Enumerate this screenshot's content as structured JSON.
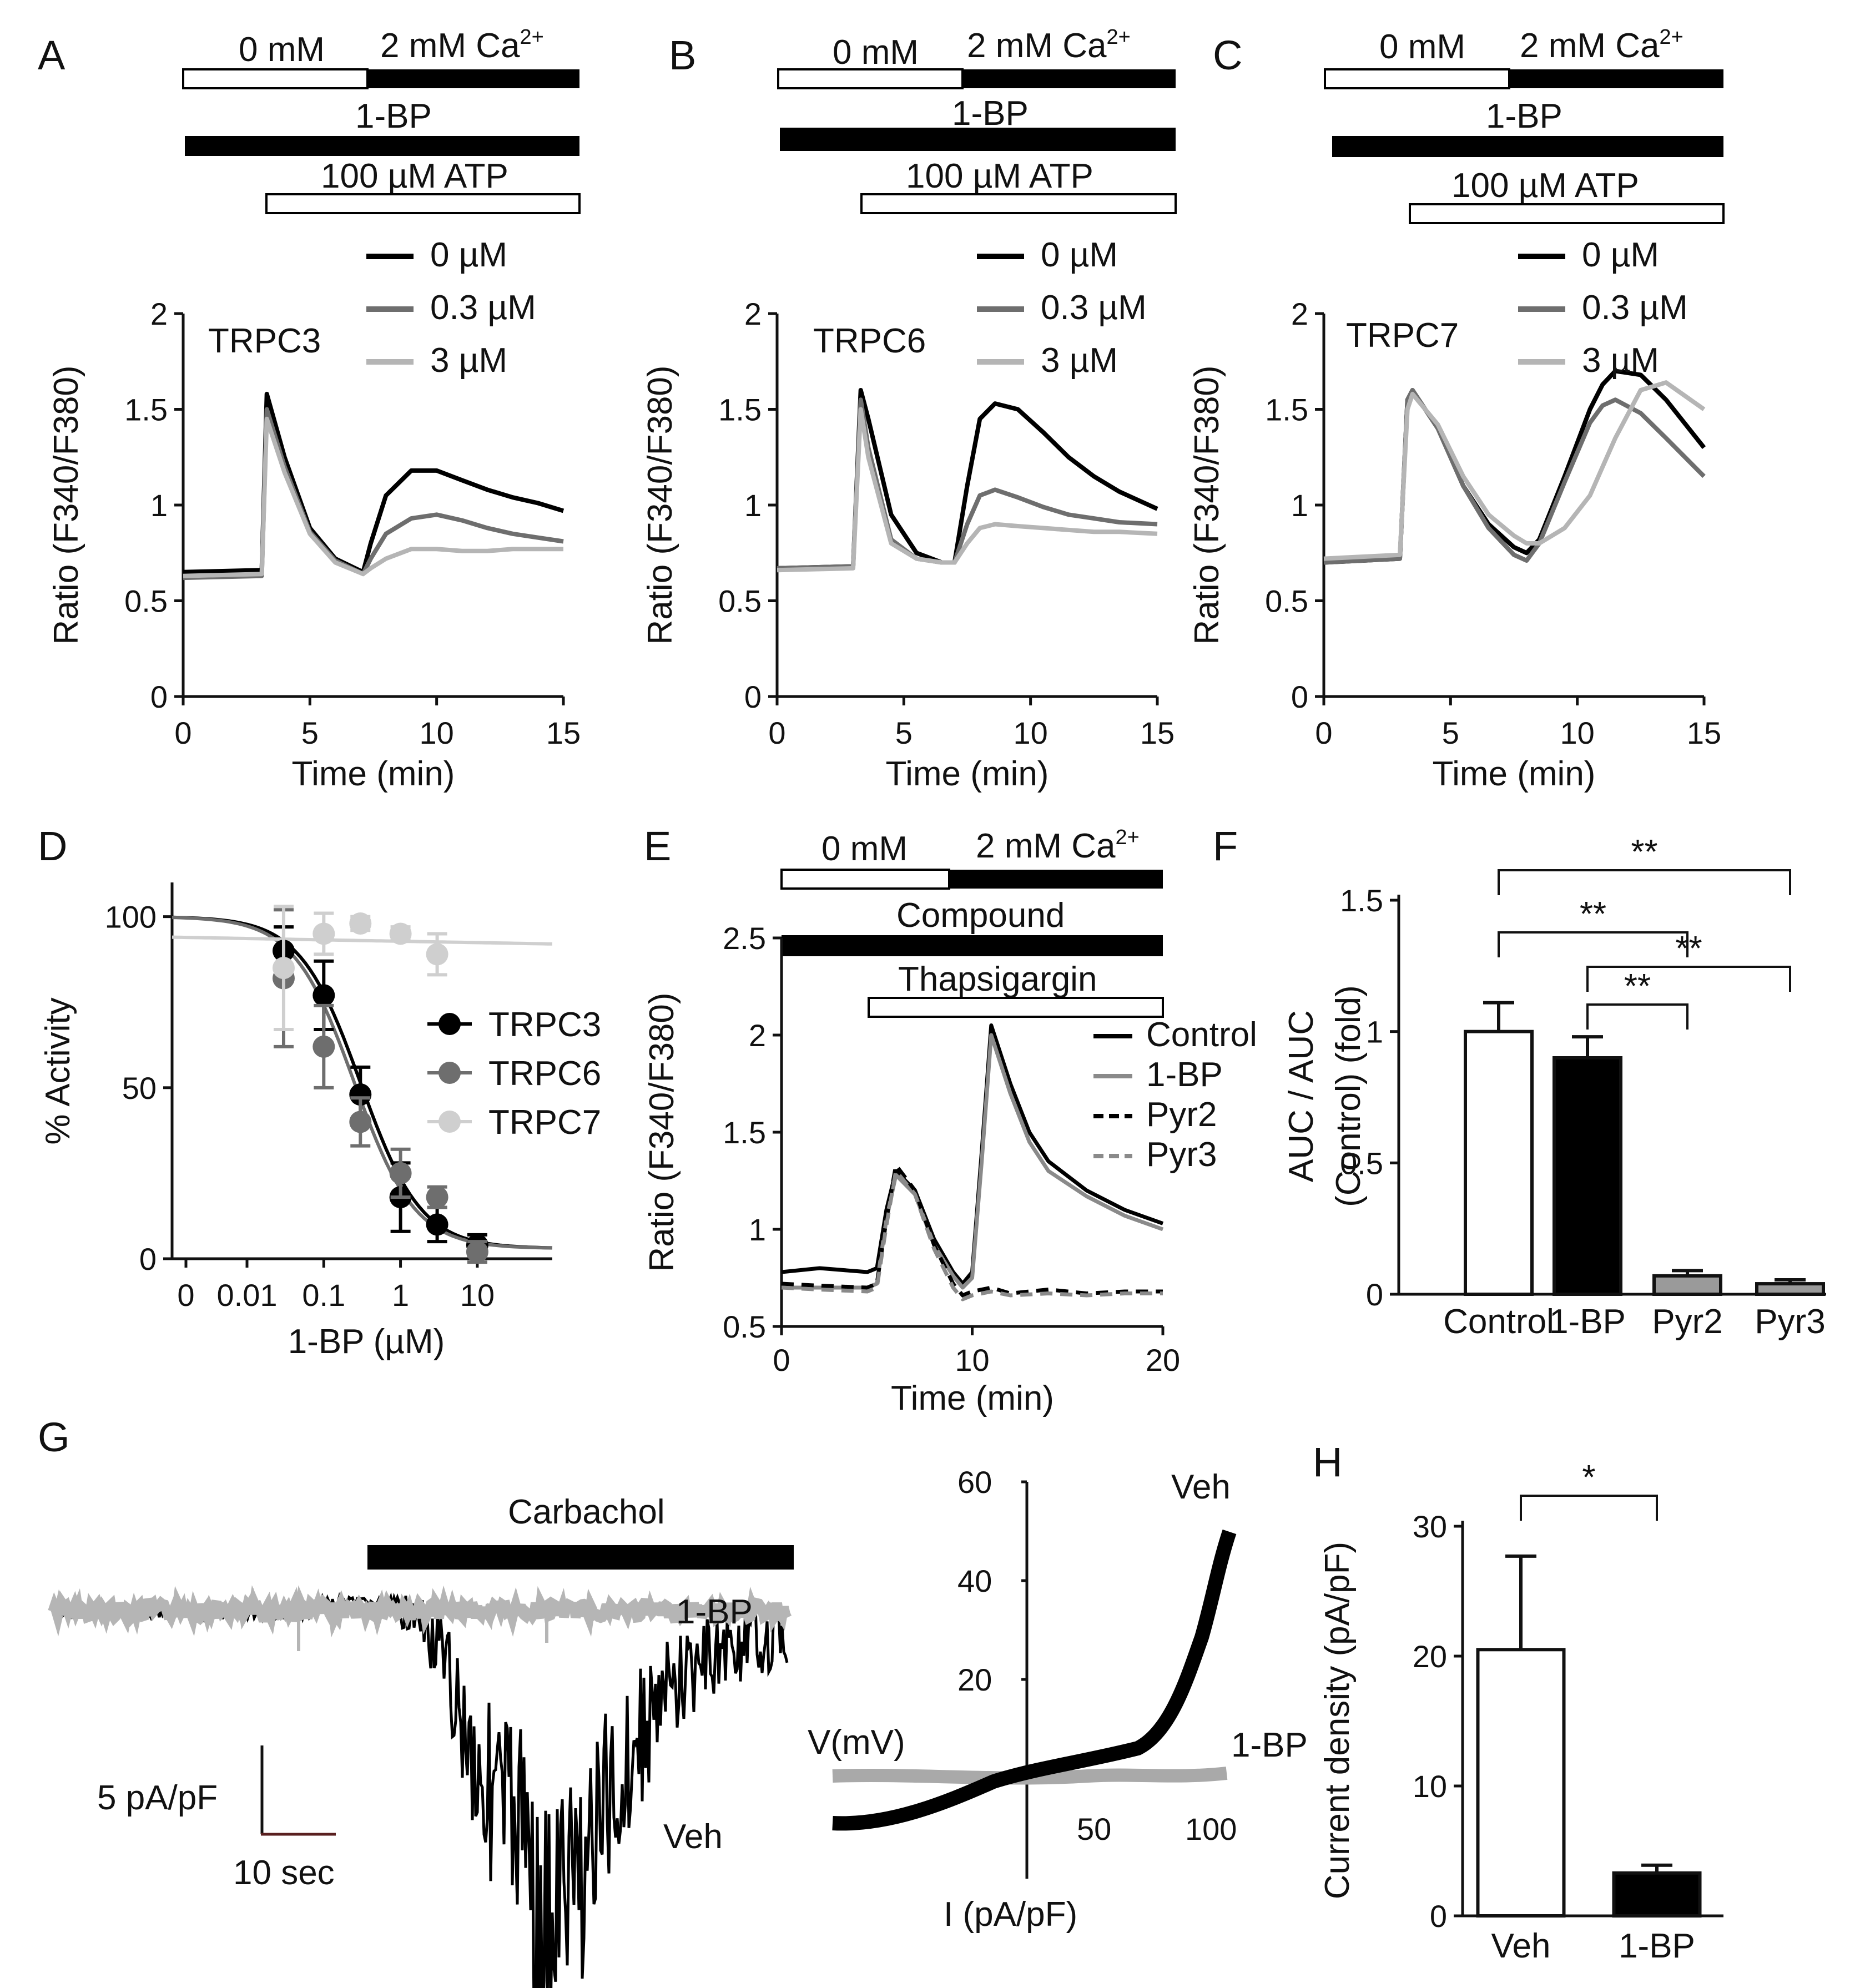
{
  "colors": {
    "black": "#000000",
    "dark_gray": "#6e6e6e",
    "light_gray": "#b5b5b5",
    "very_light_gray": "#cfcfcf",
    "white": "#ffffff"
  },
  "panels": {
    "A": {
      "letter": "A",
      "bars": {
        "zero": "0 mM",
        "ca": "2 mM Ca",
        "ca_sup": "2+",
        "drug": "1-BP",
        "agonist": "100 µM ATP"
      }
    },
    "B": {
      "letter": "B",
      "bars": {
        "zero": "0 mM",
        "ca": "2 mM Ca",
        "ca_sup": "2+",
        "drug": "1-BP",
        "agonist": "100 µM ATP"
      }
    },
    "C": {
      "letter": "C",
      "bars": {
        "zero": "0 mM",
        "ca": "2 mM Ca",
        "ca_sup": "2+",
        "drug": "1-BP",
        "agonist": "100 µM ATP"
      }
    },
    "D": {
      "letter": "D"
    },
    "E": {
      "letter": "E",
      "bars": {
        "zero": "0 mM",
        "ca": "2 mM Ca",
        "ca_sup": "2+",
        "drug": "Compound",
        "agonist": "Thapsigargin"
      }
    },
    "F": {
      "letter": "F"
    },
    "G": {
      "letter": "G",
      "bar": "Carbachol",
      "trace_1bp": "1-BP",
      "trace_veh": "Veh",
      "scale_y": "5 pA/pF",
      "scale_x": "10 sec",
      "iv_veh": "Veh",
      "iv_1bp": "1-BP",
      "iv_xlabel": "V(mV)",
      "iv_ylabel": "I (pA/pF)",
      "iv_yticks": [
        "20",
        "40",
        "60"
      ],
      "iv_xticks": [
        "50",
        "100"
      ]
    },
    "H": {
      "letter": "H"
    }
  },
  "chart_data": [
    {
      "id": "A",
      "type": "line",
      "title": "TRPC3",
      "xlabel": "Time (min)",
      "ylabel": "Ratio (F340/F380)",
      "xlim": [
        0,
        15
      ],
      "ylim": [
        0,
        2
      ],
      "xticks": [
        "0",
        "5",
        "10",
        "15"
      ],
      "yticks": [
        "0",
        "0.5",
        "1",
        "1.5",
        "2"
      ],
      "legend": [
        "0 µM",
        "0.3 µM",
        "3 µM"
      ],
      "series": [
        {
          "name": "0 µM",
          "color": "#000000",
          "x": [
            0,
            3.1,
            3.3,
            4,
            5,
            6,
            7.1,
            7.4,
            8,
            9,
            10,
            11,
            12,
            13,
            14,
            15
          ],
          "y": [
            0.65,
            0.66,
            1.58,
            1.25,
            0.88,
            0.72,
            0.65,
            0.8,
            1.05,
            1.18,
            1.18,
            1.13,
            1.08,
            1.04,
            1.01,
            0.97
          ]
        },
        {
          "name": "0.3 µM",
          "color": "#6e6e6e",
          "x": [
            0,
            3.1,
            3.3,
            4,
            5,
            6,
            7.1,
            7.4,
            8,
            9,
            10,
            11,
            12,
            13,
            14,
            15
          ],
          "y": [
            0.62,
            0.63,
            1.5,
            1.2,
            0.86,
            0.71,
            0.64,
            0.72,
            0.85,
            0.93,
            0.95,
            0.92,
            0.88,
            0.85,
            0.83,
            0.81
          ]
        },
        {
          "name": "3 µM",
          "color": "#b5b5b5",
          "x": [
            0,
            3.1,
            3.3,
            4,
            5,
            6,
            7.1,
            7.4,
            8,
            9,
            10,
            11,
            12,
            13,
            14,
            15
          ],
          "y": [
            0.63,
            0.64,
            1.45,
            1.17,
            0.85,
            0.7,
            0.64,
            0.67,
            0.72,
            0.77,
            0.77,
            0.76,
            0.76,
            0.77,
            0.77,
            0.77
          ]
        }
      ]
    },
    {
      "id": "B",
      "type": "line",
      "title": "TRPC6",
      "xlabel": "Time (min)",
      "ylabel": "Ratio (F340/F380)",
      "xlim": [
        0,
        15
      ],
      "ylim": [
        0,
        2
      ],
      "xticks": [
        "0",
        "5",
        "10",
        "15"
      ],
      "yticks": [
        "0",
        "0.5",
        "1",
        "1.5",
        "2"
      ],
      "legend": [
        "0 µM",
        "0.3 µM",
        "3 µM"
      ],
      "series": [
        {
          "name": "0 µM",
          "color": "#000000",
          "x": [
            0,
            3,
            3.3,
            3.6,
            4.5,
            5.5,
            6.5,
            7,
            7.5,
            8,
            8.6,
            9.5,
            10.5,
            11.5,
            12.5,
            13.5,
            15
          ],
          "y": [
            0.67,
            0.68,
            1.6,
            1.45,
            0.95,
            0.75,
            0.7,
            0.7,
            1.1,
            1.45,
            1.53,
            1.5,
            1.38,
            1.25,
            1.15,
            1.07,
            0.98
          ]
        },
        {
          "name": "0.3 µM",
          "color": "#6e6e6e",
          "x": [
            0,
            3,
            3.3,
            3.6,
            4.5,
            5.5,
            6.5,
            7,
            7.5,
            8,
            8.6,
            9.5,
            10.5,
            11.5,
            12.5,
            13.5,
            15
          ],
          "y": [
            0.67,
            0.68,
            1.55,
            1.3,
            0.82,
            0.72,
            0.7,
            0.7,
            0.9,
            1.05,
            1.08,
            1.04,
            0.99,
            0.95,
            0.93,
            0.91,
            0.9
          ]
        },
        {
          "name": "3 µM",
          "color": "#b5b5b5",
          "x": [
            0,
            3,
            3.3,
            3.6,
            4.5,
            5.5,
            6.5,
            7,
            7.5,
            8,
            8.6,
            9.5,
            10.5,
            11.5,
            12.5,
            13.5,
            15
          ],
          "y": [
            0.66,
            0.67,
            1.5,
            1.25,
            0.8,
            0.72,
            0.7,
            0.7,
            0.8,
            0.88,
            0.9,
            0.89,
            0.88,
            0.87,
            0.86,
            0.86,
            0.85
          ]
        }
      ]
    },
    {
      "id": "C",
      "type": "line",
      "title": "TRPC7",
      "xlabel": "Time (min)",
      "ylabel": "Ratio (F340/F380)",
      "xlim": [
        0,
        15
      ],
      "ylim": [
        0,
        2
      ],
      "xticks": [
        "0",
        "5",
        "10",
        "15"
      ],
      "yticks": [
        "0",
        "0.5",
        "1",
        "1.5",
        "2"
      ],
      "legend": [
        "0 µM",
        "0.3 µM",
        "3 µM"
      ],
      "series": [
        {
          "name": "0 µM",
          "color": "#000000",
          "x": [
            0,
            3,
            3.3,
            3.5,
            4.5,
            5.5,
            6.5,
            7.5,
            8,
            8.5,
            9.5,
            10.5,
            11,
            11.5,
            12.5,
            13.5,
            15
          ],
          "y": [
            0.7,
            0.72,
            1.55,
            1.6,
            1.4,
            1.1,
            0.9,
            0.78,
            0.75,
            0.82,
            1.15,
            1.5,
            1.63,
            1.7,
            1.68,
            1.55,
            1.3
          ]
        },
        {
          "name": "0.3 µM",
          "color": "#6e6e6e",
          "x": [
            0,
            3,
            3.3,
            3.5,
            4.5,
            5.5,
            6.5,
            7.5,
            8,
            8.5,
            9.5,
            10.5,
            11,
            11.5,
            12.5,
            13.5,
            15
          ],
          "y": [
            0.7,
            0.72,
            1.55,
            1.6,
            1.4,
            1.1,
            0.88,
            0.74,
            0.71,
            0.8,
            1.12,
            1.43,
            1.52,
            1.55,
            1.48,
            1.35,
            1.15
          ]
        },
        {
          "name": "3 µM",
          "color": "#b5b5b5",
          "x": [
            0,
            3,
            3.3,
            3.5,
            4.5,
            5.5,
            6.5,
            7.5,
            8,
            8.5,
            9.5,
            10.5,
            11,
            11.5,
            12.5,
            13.5,
            15
          ],
          "y": [
            0.72,
            0.74,
            1.5,
            1.58,
            1.42,
            1.15,
            0.95,
            0.84,
            0.8,
            0.8,
            0.88,
            1.05,
            1.2,
            1.35,
            1.6,
            1.64,
            1.5
          ]
        }
      ]
    },
    {
      "id": "D",
      "type": "scatter",
      "xlabel": "1-BP (µM)",
      "ylabel": "% Activity",
      "yticks": [
        "0",
        "50",
        "100"
      ],
      "xticks": [
        "0",
        "0.01",
        "0.1",
        "1",
        "10"
      ],
      "ylim": [
        0,
        110
      ],
      "series": [
        {
          "name": "TRPC3",
          "color": "#000000",
          "x": [
            0.03,
            0.1,
            0.3,
            1,
            3,
            10
          ],
          "y": [
            90,
            77,
            48,
            18,
            10,
            4
          ],
          "err": [
            7,
            10,
            8,
            10,
            5,
            3
          ],
          "ic50": 0.3
        },
        {
          "name": "TRPC6",
          "color": "#6e6e6e",
          "x": [
            0.03,
            0.1,
            0.3,
            1,
            3,
            10
          ],
          "y": [
            82,
            62,
            40,
            25,
            18,
            2
          ],
          "err": [
            20,
            12,
            7,
            7,
            3,
            3
          ],
          "ic50": 0.25
        },
        {
          "name": "TRPC7",
          "color": "#cfcfcf",
          "x": [
            0.03,
            0.1,
            0.3,
            1,
            3
          ],
          "y": [
            85,
            95,
            98,
            95,
            89
          ],
          "err": [
            18,
            6,
            2,
            2,
            6
          ]
        }
      ]
    },
    {
      "id": "E",
      "type": "line",
      "xlabel": "Time (min)",
      "ylabel": "Ratio (F340/F380)",
      "xlim": [
        0,
        20
      ],
      "ylim": [
        0.5,
        2.5
      ],
      "xticks": [
        "0",
        "10",
        "20"
      ],
      "yticks": [
        "0.5",
        "1",
        "1.5",
        "2",
        "2.5"
      ],
      "legend": [
        "Control",
        "1-BP",
        "Pyr2",
        "Pyr3"
      ],
      "series": [
        {
          "name": "Control",
          "color": "#000000",
          "dash": false,
          "x": [
            0,
            2,
            4.5,
            5,
            5.5,
            6,
            7,
            8,
            9,
            9.5,
            10,
            10.5,
            11,
            12,
            13,
            14,
            16,
            18,
            20
          ],
          "y": [
            0.78,
            0.8,
            0.78,
            0.8,
            1.1,
            1.3,
            1.2,
            0.95,
            0.78,
            0.72,
            0.78,
            1.4,
            2.05,
            1.75,
            1.5,
            1.35,
            1.2,
            1.1,
            1.03
          ]
        },
        {
          "name": "1-BP",
          "color": "#8a8a8a",
          "dash": false,
          "x": [
            0,
            2,
            4.5,
            5,
            5.5,
            6,
            7,
            8,
            9,
            9.5,
            10,
            10.5,
            11,
            12,
            13,
            14,
            16,
            18,
            20
          ],
          "y": [
            0.7,
            0.7,
            0.7,
            0.72,
            1.05,
            1.28,
            1.18,
            0.92,
            0.76,
            0.7,
            0.75,
            1.35,
            2.0,
            1.7,
            1.45,
            1.3,
            1.17,
            1.07,
            1.0
          ]
        },
        {
          "name": "Pyr2",
          "color": "#000000",
          "dash": true,
          "x": [
            0,
            2,
            4.5,
            5,
            5.5,
            6,
            7,
            8,
            9,
            9.5,
            10,
            11,
            12,
            14,
            16,
            18,
            20
          ],
          "y": [
            0.72,
            0.71,
            0.7,
            0.72,
            1.05,
            1.33,
            1.2,
            0.92,
            0.72,
            0.66,
            0.68,
            0.7,
            0.67,
            0.69,
            0.67,
            0.68,
            0.68
          ]
        },
        {
          "name": "Pyr3",
          "color": "#8a8a8a",
          "dash": true,
          "x": [
            0,
            2,
            4.5,
            5,
            5.5,
            6,
            7,
            8,
            9,
            9.5,
            10,
            11,
            12,
            14,
            16,
            18,
            20
          ],
          "y": [
            0.7,
            0.69,
            0.68,
            0.7,
            1.02,
            1.3,
            1.18,
            0.9,
            0.7,
            0.64,
            0.66,
            0.68,
            0.66,
            0.67,
            0.66,
            0.67,
            0.67
          ]
        }
      ]
    },
    {
      "id": "F",
      "type": "bar",
      "ylabel_line1": "AUC / AUC",
      "ylabel_line2": "(Control) (fold)",
      "ylim": [
        0,
        1.5
      ],
      "yticks": [
        "0",
        "0.5",
        "1",
        "1.5"
      ],
      "categories": [
        "Control",
        "1-BP",
        "Pyr2",
        "Pyr3"
      ],
      "values": [
        1.0,
        0.9,
        0.07,
        0.04
      ],
      "errors": [
        0.11,
        0.08,
        0.02,
        0.015
      ],
      "fills": [
        "#ffffff",
        "#000000",
        "#9a9a9a",
        "#9a9a9a"
      ],
      "sig_label": "**"
    },
    {
      "id": "H",
      "type": "bar",
      "ylabel": "Current density (pA/pF)",
      "ylim": [
        0,
        30
      ],
      "yticks": [
        "0",
        "10",
        "20",
        "30"
      ],
      "categories": [
        "Veh",
        "1-BP"
      ],
      "values": [
        20.5,
        3.3
      ],
      "errors": [
        7.2,
        0.6
      ],
      "fills": [
        "#ffffff",
        "#000000"
      ],
      "sig_label": "*"
    }
  ]
}
